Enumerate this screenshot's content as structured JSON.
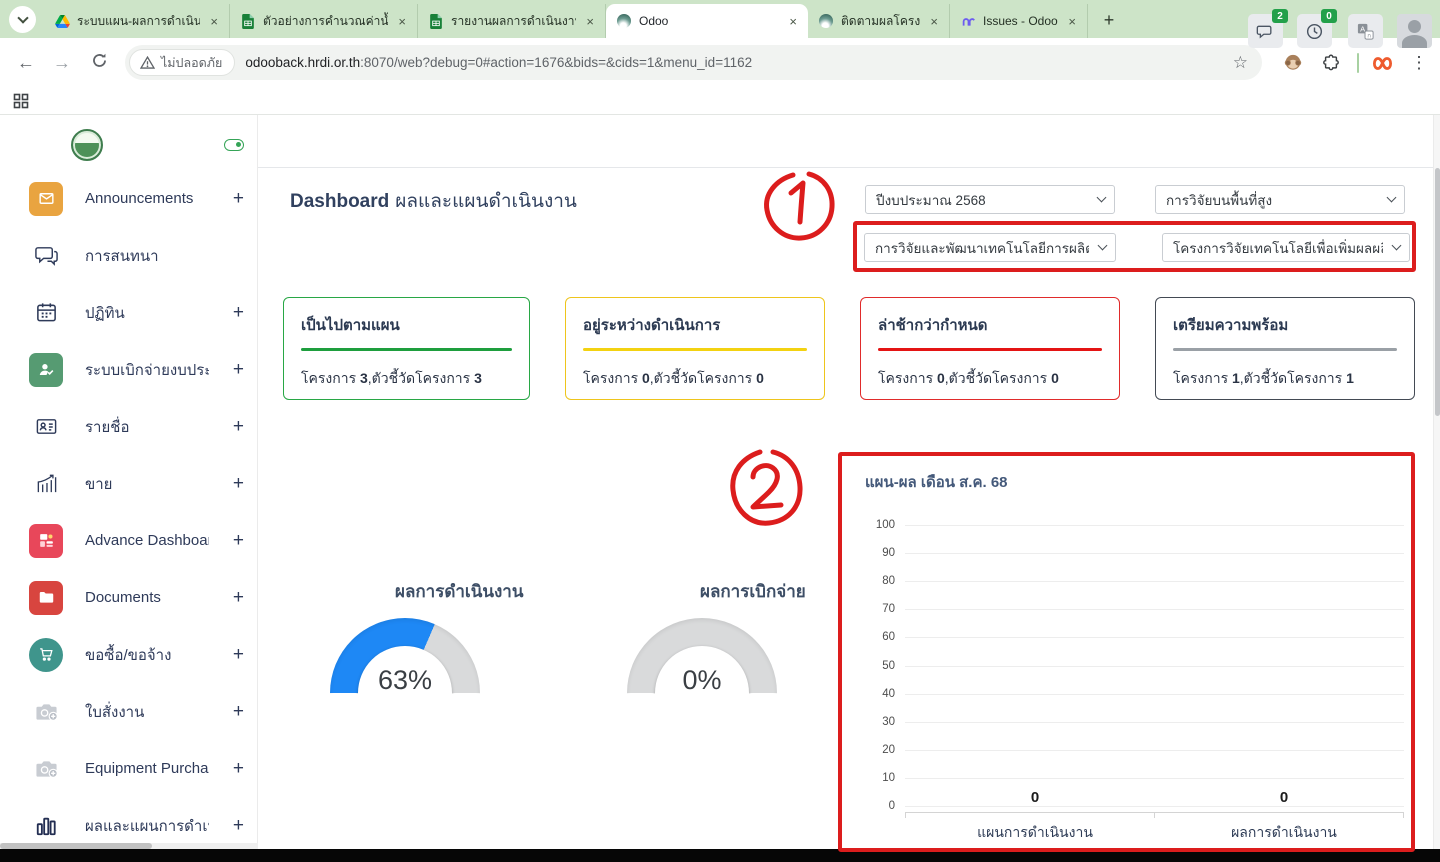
{
  "glyphs": {
    "plus": "+",
    "close_tab": "×",
    "minimize": "−",
    "menu_dots": "⋮",
    "star": "☆",
    "back": "←",
    "forward": "→",
    "new_tab": "+"
  },
  "browser": {
    "tabs": [
      {
        "title": "ระบบแผน-ผลการดำเนินงาน",
        "icon": "drive",
        "active": false
      },
      {
        "title": "ตัวอย่างการคำนวณค่าน้ำหนั",
        "icon": "sheets",
        "active": false
      },
      {
        "title": "รายงานผลการดำเนินงานแล",
        "icon": "sheets",
        "active": false
      },
      {
        "title": "Odoo",
        "icon": "odoo",
        "active": true
      },
      {
        "title": "ติดตามผลโครงการ - Odoo",
        "icon": "odoo",
        "active": false
      },
      {
        "title": "Issues - Odoo ERP Phas",
        "icon": "plane",
        "active": false
      }
    ],
    "security_label": "ไม่ปลอดภัย",
    "url_host": "odooback.hrdi.or.th",
    "url_rest": ":8070/web?debug=0#action=1676&bids=&cids=1&menu_id=1162"
  },
  "sidebar": {
    "items": [
      {
        "label": "Announcements",
        "icon": "announcement",
        "plus": true
      },
      {
        "label": "การสนทนา",
        "icon": "chat",
        "plus": false
      },
      {
        "label": "ปฏิทิน",
        "icon": "calendar",
        "plus": true
      },
      {
        "label": "ระบบเบิกจ่ายงบประมาณ",
        "icon": "budget",
        "plus": true
      },
      {
        "label": "รายชื่อ",
        "icon": "contacts",
        "plus": true
      },
      {
        "label": "ขาย",
        "icon": "sales",
        "plus": true
      },
      {
        "label": "Advance Dashboard",
        "icon": "advdash",
        "plus": true
      },
      {
        "label": "Documents",
        "icon": "documents",
        "plus": true
      },
      {
        "label": "ขอซื้อ/ขอจ้าง",
        "icon": "purchase",
        "plus": true
      },
      {
        "label": "ใบสั่งงาน",
        "icon": "camera",
        "plus": true
      },
      {
        "label": "Equipment Purchase Req",
        "icon": "camera",
        "plus": true
      },
      {
        "label": "ผลและแผนการดำเนินงาน",
        "icon": "report",
        "plus": true
      }
    ]
  },
  "topbar": {
    "chat_badge": "2",
    "activity_badge": "0"
  },
  "page": {
    "title_bold": "Dashboard",
    "title_rest": "ผลและแผนดำเนินงาน",
    "filters": [
      {
        "value": "ปีงบประมาณ 2568"
      },
      {
        "value": "การวิจัยบนพื้นที่สูง"
      },
      {
        "value": "การวิจัยและพัฒนาเทคโนโลยีการผลิตแล"
      },
      {
        "value": "โครงการวิจัยเทคโนโลยีเพื่อเพิ่มผลผลิตแ"
      }
    ],
    "cards": [
      {
        "title": "เป็นไปตามแผน",
        "p1": "โครงการ ",
        "v1": "3",
        "p2": ",ตัวชี้วัดโครงการ ",
        "v2": "3",
        "color": "#28a745",
        "line": "#1e9e3e"
      },
      {
        "title": "อยู่ระหว่างดำเนินการ",
        "p1": "โครงการ ",
        "v1": "0",
        "p2": ",ตัวชี้วัดโครงการ ",
        "v2": "0",
        "color": "#eec51c",
        "line": "#f3d211"
      },
      {
        "title": "ล่าช้ากว่ากำหนด",
        "p1": "โครงการ ",
        "v1": "0",
        "p2": ",ตัวชี้วัดโครงการ ",
        "v2": "0",
        "color": "#e02b2b",
        "line": "#e41414"
      },
      {
        "title": "เตรียมความพร้อม",
        "p1": "โครงการ ",
        "v1": "1",
        "p2": ",ตัวชี้วัดโครงการ ",
        "v2": "1",
        "color": "#434a54",
        "line": "#9aa0a6"
      }
    ]
  },
  "chart_data": [
    {
      "type": "gauge",
      "title": "ผลการดำเนินงาน",
      "value": 63,
      "max": 100,
      "label": "63%"
    },
    {
      "type": "gauge",
      "title": "ผลการเบิกจ่าย",
      "value": 0,
      "max": 100,
      "label": "0%"
    },
    {
      "type": "bar",
      "title": "แผน-ผล เดือน ส.ค. 68",
      "categories": [
        "แผนการดำเนินงาน",
        "ผลการดำเนินงาน"
      ],
      "values": [
        0,
        0
      ],
      "data_labels": [
        "0",
        "0"
      ],
      "ylim": [
        0,
        100
      ],
      "ytick_step": 10,
      "grid": true,
      "legend": false
    }
  ],
  "annotations": {
    "circle1": "1",
    "circle2": "2",
    "color": "#dc1d1d"
  }
}
